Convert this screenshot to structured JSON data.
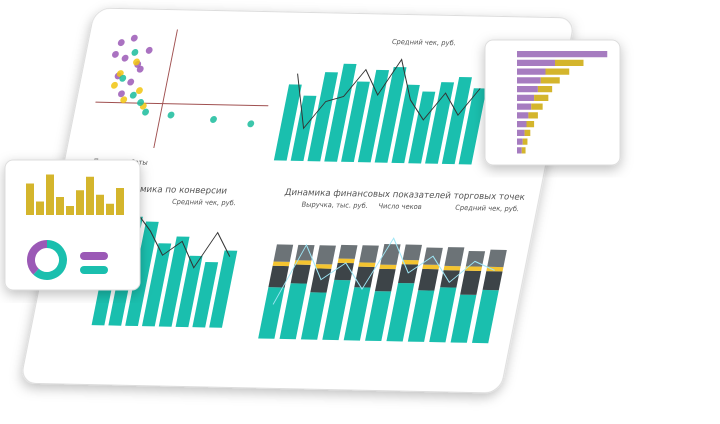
{
  "scatter_panel": {
    "legend_title": "Период работы",
    "xlim": [
      0,
      100
    ],
    "ylim": [
      0,
      100
    ],
    "series": [
      {
        "color": "#9b59b6",
        "x": [
          8,
          12,
          15,
          20,
          10,
          25,
          18,
          6,
          14,
          22
        ],
        "y": [
          88,
          75,
          92,
          70,
          60,
          82,
          55,
          78,
          45,
          66
        ]
      },
      {
        "color": "#f1c40f",
        "x": [
          16,
          24,
          11,
          28,
          19,
          9
        ],
        "y": [
          40,
          48,
          62,
          35,
          72,
          52
        ]
      },
      {
        "color": "#1abc9c",
        "x": [
          13,
          21,
          30,
          17,
          26,
          45,
          70,
          92
        ],
        "y": [
          58,
          44,
          30,
          80,
          38,
          28,
          25,
          22
        ]
      }
    ]
  },
  "sales_panel": {
    "legend": "Средний чек, руб.",
    "ylim": [
      0,
      100
    ],
    "color": "#1abfae",
    "bars": [
      70,
      60,
      82,
      90,
      74,
      85,
      88,
      72,
      66,
      75,
      80,
      70
    ],
    "line": [
      80,
      30,
      55,
      60,
      85,
      62,
      95,
      58,
      40,
      65,
      45,
      70
    ]
  },
  "conversion_panel": {
    "title": "Динамика по конверсии",
    "legend": "Средний чек, руб.",
    "ylim": [
      0,
      100
    ],
    "color": "#1abfae",
    "bars": [
      80,
      92,
      88,
      70,
      76,
      60,
      55,
      65
    ],
    "line": [
      70,
      95,
      80,
      60,
      72,
      50,
      80,
      60
    ]
  },
  "finance_panel": {
    "title": "Динамика финансовых показателей торговых точек",
    "legends": [
      "Выручка, тыс. руб.",
      "Число чеков",
      "Средний чек, руб."
    ],
    "ylim": [
      0,
      150
    ],
    "segments": [
      {
        "color": "#1abfae",
        "values": [
          60,
          65,
          55,
          70,
          62,
          58,
          68,
          60,
          64,
          56,
          62
        ]
      },
      {
        "color": "#3d4448",
        "values": [
          25,
          22,
          28,
          20,
          24,
          26,
          22,
          25,
          20,
          28,
          22
        ]
      },
      {
        "color": "#f4c430",
        "values": [
          5,
          5,
          5,
          5,
          5,
          5,
          5,
          5,
          5,
          5,
          5
        ]
      },
      {
        "color": "#6c7377",
        "values": [
          20,
          18,
          22,
          16,
          20,
          24,
          18,
          20,
          22,
          18,
          20
        ]
      }
    ],
    "line": [
      40,
      110,
      70,
      90,
      60,
      120,
      80,
      100,
      70,
      95,
      85
    ]
  },
  "left_card": {
    "color": "#d4b52c",
    "bars": [
      70,
      30,
      90,
      40,
      20,
      55,
      85,
      45,
      25,
      60
    ],
    "donut": [
      {
        "color": "#1abfae",
        "value": 62
      },
      {
        "color": "#9b59b6",
        "value": 38
      }
    ],
    "pills": [
      "#9b59b6",
      "#1abfae"
    ],
    "ylim": [
      0,
      100
    ]
  },
  "right_card": {
    "xlim": [
      0,
      100
    ],
    "series": [
      {
        "color": "#a67cc0",
        "values": [
          95,
          40,
          30,
          25,
          22,
          18,
          15,
          12,
          10,
          8,
          6,
          5
        ]
      },
      {
        "color": "#d4b52c",
        "values": [
          0,
          30,
          25,
          20,
          15,
          15,
          12,
          10,
          8,
          6,
          5,
          4
        ]
      }
    ]
  }
}
